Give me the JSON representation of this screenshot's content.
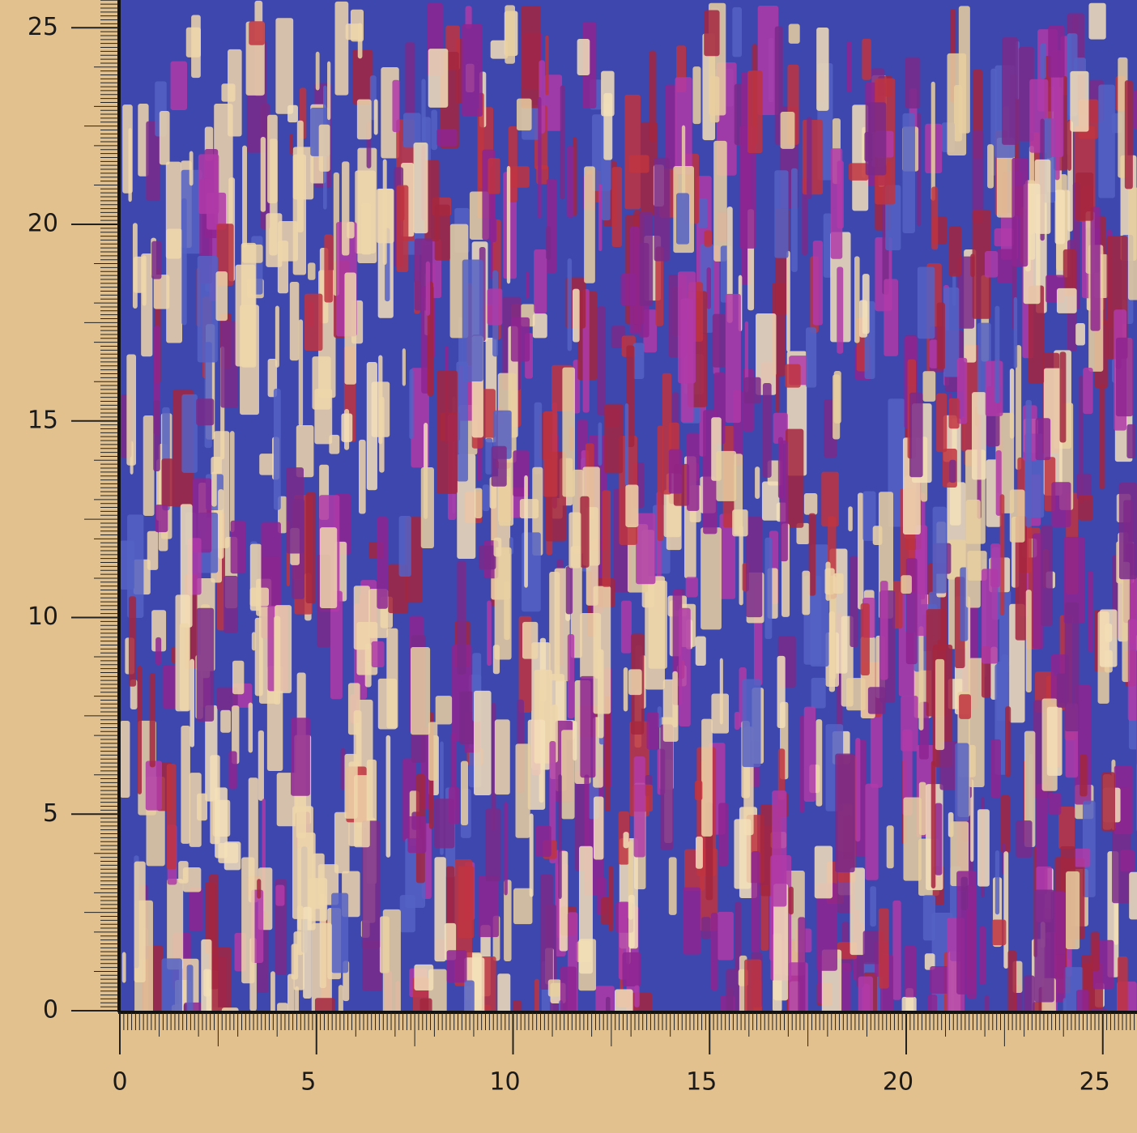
{
  "rulers": {
    "x_labels": [
      "0",
      "5",
      "10",
      "15",
      "20",
      "25"
    ],
    "y_labels": [
      "0",
      "5",
      "10",
      "15",
      "20",
      "25"
    ]
  }
}
